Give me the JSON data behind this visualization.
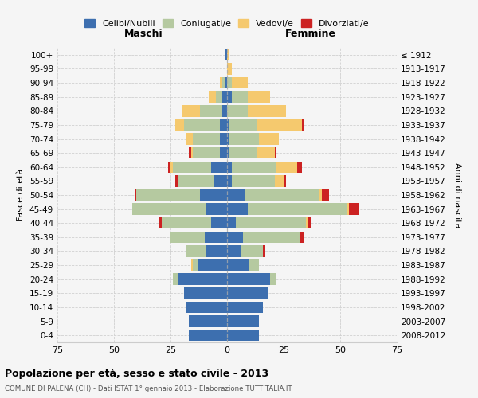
{
  "age_groups": [
    "0-4",
    "5-9",
    "10-14",
    "15-19",
    "20-24",
    "25-29",
    "30-34",
    "35-39",
    "40-44",
    "45-49",
    "50-54",
    "55-59",
    "60-64",
    "65-69",
    "70-74",
    "75-79",
    "80-84",
    "85-89",
    "90-94",
    "95-99",
    "100+"
  ],
  "birth_years": [
    "2008-2012",
    "2003-2007",
    "1998-2002",
    "1993-1997",
    "1988-1992",
    "1983-1987",
    "1978-1982",
    "1973-1977",
    "1968-1972",
    "1963-1967",
    "1958-1962",
    "1953-1957",
    "1948-1952",
    "1943-1947",
    "1938-1942",
    "1933-1937",
    "1928-1932",
    "1923-1927",
    "1918-1922",
    "1913-1917",
    "≤ 1912"
  ],
  "colors": {
    "celibe": "#3d6faf",
    "coniugato": "#b5c9a0",
    "vedovo": "#f5c96e",
    "divorziato": "#cc2222"
  },
  "maschi": {
    "celibe": [
      17,
      17,
      18,
      19,
      22,
      13,
      9,
      10,
      7,
      9,
      12,
      6,
      7,
      3,
      3,
      3,
      2,
      2,
      1,
      0,
      1
    ],
    "coniugato": [
      0,
      0,
      0,
      0,
      2,
      2,
      9,
      15,
      22,
      33,
      28,
      16,
      17,
      12,
      12,
      16,
      10,
      3,
      1,
      0,
      0
    ],
    "vedovo": [
      0,
      0,
      0,
      0,
      0,
      1,
      0,
      0,
      0,
      0,
      0,
      0,
      1,
      1,
      3,
      4,
      8,
      3,
      1,
      0,
      0
    ],
    "divorziato": [
      0,
      0,
      0,
      0,
      0,
      0,
      0,
      0,
      1,
      0,
      1,
      1,
      1,
      1,
      0,
      0,
      0,
      0,
      0,
      0,
      0
    ]
  },
  "femmine": {
    "celibe": [
      14,
      14,
      16,
      18,
      19,
      10,
      6,
      7,
      4,
      9,
      8,
      2,
      2,
      1,
      1,
      1,
      0,
      2,
      0,
      0,
      0
    ],
    "coniugato": [
      0,
      0,
      0,
      0,
      3,
      4,
      10,
      25,
      31,
      44,
      33,
      19,
      20,
      12,
      13,
      12,
      9,
      7,
      2,
      0,
      0
    ],
    "vedovo": [
      0,
      0,
      0,
      0,
      0,
      0,
      0,
      0,
      1,
      1,
      1,
      4,
      9,
      8,
      9,
      20,
      17,
      10,
      7,
      2,
      1
    ],
    "divorziato": [
      0,
      0,
      0,
      0,
      0,
      0,
      1,
      2,
      1,
      4,
      3,
      1,
      2,
      1,
      0,
      1,
      0,
      0,
      0,
      0,
      0
    ]
  },
  "title": "Popolazione per età, sesso e stato civile - 2013",
  "subtitle": "COMUNE DI PALENA (CH) - Dati ISTAT 1° gennaio 2013 - Elaborazione TUTTITALIA.IT",
  "xlabel_left": "Maschi",
  "xlabel_right": "Femmine",
  "ylabel_left": "Fasce di età",
  "ylabel_right": "Anni di nascita",
  "legend_labels": [
    "Celibi/Nubili",
    "Coniugati/e",
    "Vedovi/e",
    "Divorziati/e"
  ],
  "xlim": 75,
  "background_color": "#f5f5f5",
  "grid_color": "#cccccc"
}
